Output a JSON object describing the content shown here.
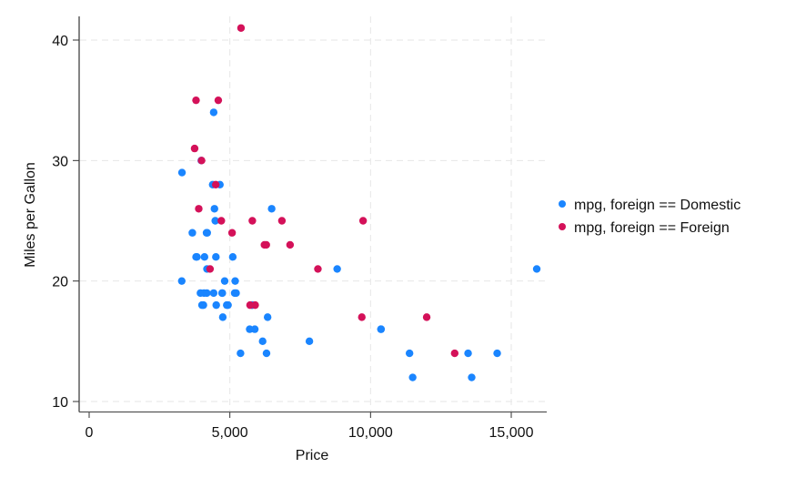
{
  "chart_data": {
    "type": "scatter",
    "xlabel": "Price",
    "ylabel": "Miles per Gallon",
    "xlim": [
      0,
      16300
    ],
    "ylim": [
      9.2,
      42
    ],
    "xticks": [
      0,
      5000,
      10000,
      15000
    ],
    "xtick_labels": [
      "0",
      "5,000",
      "10,000",
      "15,000"
    ],
    "yticks": [
      10,
      20,
      30,
      40
    ],
    "ytick_labels": [
      "10",
      "20",
      "30",
      "40"
    ],
    "grid": true,
    "legend_position": "right",
    "series": [
      {
        "name": "mpg, foreign == Domestic",
        "color": "#1a85ff",
        "points": [
          [
            4099,
            22
          ],
          [
            4749,
            17
          ],
          [
            3799,
            22
          ],
          [
            4816,
            20
          ],
          [
            7827,
            15
          ],
          [
            5788,
            18
          ],
          [
            4453,
            26
          ],
          [
            5189,
            20
          ],
          [
            10372,
            16
          ],
          [
            4082,
            19
          ],
          [
            11385,
            14
          ],
          [
            14500,
            14
          ],
          [
            15906,
            21
          ],
          [
            3299,
            29
          ],
          [
            5705,
            16
          ],
          [
            4504,
            22
          ],
          [
            5104,
            22
          ],
          [
            3667,
            24
          ],
          [
            3955,
            19
          ],
          [
            3984,
            30
          ],
          [
            4010,
            18
          ],
          [
            5886,
            16
          ],
          [
            6342,
            17
          ],
          [
            4389,
            28
          ],
          [
            4187,
            21
          ],
          [
            11497,
            12
          ],
          [
            13594,
            12
          ],
          [
            13466,
            14
          ],
          [
            3829,
            22
          ],
          [
            5379,
            14
          ],
          [
            6165,
            15
          ],
          [
            4516,
            18
          ],
          [
            6303,
            14
          ],
          [
            3291,
            20
          ],
          [
            8814,
            21
          ],
          [
            5172,
            19
          ],
          [
            4733,
            19
          ],
          [
            4890,
            18
          ],
          [
            4181,
            19
          ],
          [
            4195,
            24
          ],
          [
            10371,
            16
          ],
          [
            4647,
            28
          ],
          [
            4425,
            34
          ],
          [
            4482,
            25
          ],
          [
            6486,
            26
          ],
          [
            4060,
            18
          ],
          [
            5798,
            18
          ],
          [
            4934,
            18
          ],
          [
            5222,
            19
          ],
          [
            4723,
            19
          ],
          [
            4424,
            19
          ],
          [
            4172,
            24
          ]
        ]
      },
      {
        "name": "mpg, foreign == Foreign",
        "color": "#d41159",
        "points": [
          [
            9690,
            17
          ],
          [
            6295,
            23
          ],
          [
            9735,
            25
          ],
          [
            6229,
            23
          ],
          [
            4589,
            35
          ],
          [
            5079,
            24
          ],
          [
            8129,
            21
          ],
          [
            4296,
            21
          ],
          [
            5799,
            25
          ],
          [
            4499,
            28
          ],
          [
            3995,
            30
          ],
          [
            12990,
            14
          ],
          [
            3895,
            26
          ],
          [
            3798,
            35
          ],
          [
            5899,
            18
          ],
          [
            3748,
            31
          ],
          [
            5719,
            18
          ],
          [
            7140,
            23
          ],
          [
            5397,
            41
          ],
          [
            4697,
            25
          ],
          [
            6850,
            25
          ],
          [
            11995,
            17
          ]
        ]
      }
    ]
  }
}
